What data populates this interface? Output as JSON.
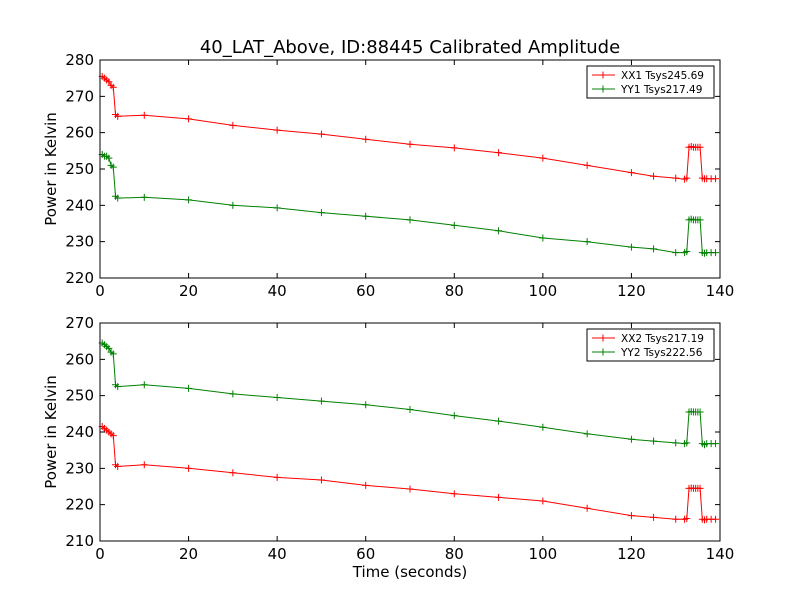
{
  "title": "40_LAT_Above, ID:88445 Calibrated Amplitude",
  "xlabel": "Time (seconds)",
  "colors": {
    "xx": "#ff0000",
    "yy": "#008000"
  },
  "chart_data": [
    {
      "type": "line",
      "title": "40_LAT_Above, ID:88445 Calibrated Amplitude",
      "xlabel": "",
      "ylabel": "Power in Kelvin",
      "xlim": [
        0,
        140
      ],
      "ylim": [
        220,
        280
      ],
      "xticks": [
        0,
        20,
        40,
        60,
        80,
        100,
        120,
        140
      ],
      "yticks": [
        220,
        230,
        240,
        250,
        260,
        270,
        280
      ],
      "legend": "top-right",
      "grid": false,
      "marker": "+",
      "series": [
        {
          "name": "XX1 Tsys245.69",
          "color": "#ff0000",
          "x": [
            0.5,
            1,
            1.5,
            2,
            2.5,
            3,
            3.5,
            4,
            10,
            20,
            30,
            40,
            50,
            60,
            70,
            80,
            90,
            100,
            110,
            120,
            125,
            130,
            132,
            132.5,
            133,
            133.5,
            134,
            134.5,
            135,
            135.5,
            136,
            136.5,
            137,
            138,
            139
          ],
          "y": [
            275.5,
            275,
            274.5,
            274,
            273,
            272.5,
            265,
            264.5,
            264.8,
            263.8,
            262,
            260.7,
            259.6,
            258.2,
            256.8,
            255.8,
            254.5,
            253,
            251,
            249,
            248,
            247.5,
            247.2,
            247.5,
            256,
            256.2,
            256,
            256,
            256,
            256,
            247.5,
            247.3,
            247.3,
            247.3,
            247.3
          ]
        },
        {
          "name": "YY1 Tsys217.49",
          "color": "#008000",
          "x": [
            0.5,
            1,
            1.5,
            2,
            2.5,
            3,
            3.5,
            4,
            10,
            20,
            30,
            40,
            50,
            60,
            70,
            80,
            90,
            100,
            110,
            120,
            125,
            130,
            132,
            132.5,
            133,
            133.5,
            134,
            134.5,
            135,
            135.5,
            136,
            136.5,
            137,
            138,
            139
          ],
          "y": [
            254,
            253.5,
            253.5,
            253,
            251,
            250.5,
            242.5,
            242,
            242.2,
            241.5,
            240,
            239.3,
            238,
            237,
            236,
            234.5,
            233,
            231,
            230,
            228.5,
            228,
            227,
            227,
            227.3,
            236,
            236.2,
            236,
            236,
            236,
            236,
            227,
            226.8,
            227,
            227,
            227
          ]
        }
      ]
    },
    {
      "type": "line",
      "title": "",
      "xlabel": "Time (seconds)",
      "ylabel": "Power in Kelvin",
      "xlim": [
        0,
        140
      ],
      "ylim": [
        210,
        270
      ],
      "xticks": [
        0,
        20,
        40,
        60,
        80,
        100,
        120,
        140
      ],
      "yticks": [
        210,
        220,
        230,
        240,
        250,
        260,
        270
      ],
      "legend": "top-right",
      "grid": false,
      "marker": "+",
      "series": [
        {
          "name": "XX2 Tsys217.19",
          "color": "#ff0000",
          "x": [
            0.5,
            1,
            1.5,
            2,
            2.5,
            3,
            3.5,
            4,
            10,
            20,
            30,
            40,
            50,
            60,
            70,
            80,
            90,
            100,
            110,
            120,
            125,
            130,
            132,
            132.5,
            133,
            133.5,
            134,
            134.5,
            135,
            135.5,
            136,
            136.5,
            137,
            138,
            139
          ],
          "y": [
            241.5,
            241,
            240.5,
            240,
            239.5,
            239,
            231,
            230.5,
            231,
            230,
            228.8,
            227.5,
            226.8,
            225.3,
            224.3,
            223,
            222,
            221,
            219,
            217,
            216.5,
            216,
            216,
            216.2,
            224.5,
            224.6,
            224.5,
            224.5,
            224.5,
            224.5,
            216,
            215.8,
            216,
            216,
            216
          ]
        },
        {
          "name": "YY2 Tsys222.56",
          "color": "#008000",
          "x": [
            0.5,
            1,
            1.5,
            2,
            2.5,
            3,
            3.5,
            4,
            10,
            20,
            30,
            40,
            50,
            60,
            70,
            80,
            90,
            100,
            110,
            120,
            125,
            130,
            132,
            132.5,
            133,
            133.5,
            134,
            134.5,
            135,
            135.5,
            136,
            136.5,
            137,
            138,
            139
          ],
          "y": [
            264.5,
            264,
            263.5,
            263,
            262,
            261.5,
            253,
            252.5,
            253,
            252,
            250.5,
            249.5,
            248.5,
            247.5,
            246.2,
            244.5,
            243,
            241.3,
            239.5,
            238,
            237.5,
            237,
            236.8,
            237,
            245.5,
            245.6,
            245.5,
            245.5,
            245.5,
            245.5,
            236.8,
            236.5,
            236.8,
            236.8,
            236.8
          ]
        }
      ]
    }
  ]
}
